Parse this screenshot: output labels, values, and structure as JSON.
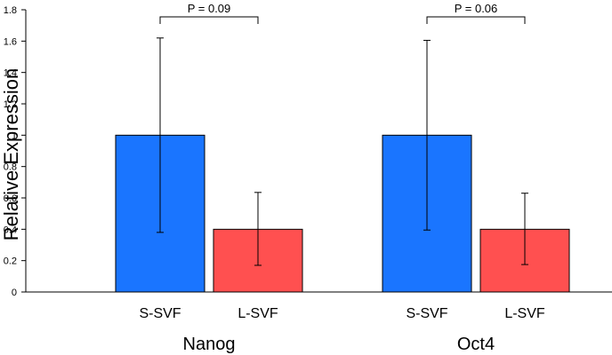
{
  "chart_data": {
    "type": "bar",
    "title": "",
    "ylabel": "Relative Expression",
    "xlabel": "",
    "ylim": [
      0,
      1.8
    ],
    "yticks": [
      0,
      0.2,
      0.4,
      0.6,
      0.8,
      1,
      1.2,
      1.4,
      1.6,
      1.8
    ],
    "ytick_labels": [
      "0",
      "0.2",
      "0.4",
      "0.6",
      "0.8",
      "1",
      "1.2",
      "1.4",
      "1.6",
      "1.8"
    ],
    "grid": false,
    "colors": {
      "S-SVF": "#1a75ff",
      "L-SVF": "#ff5050"
    },
    "groups": [
      {
        "name": "Nanog",
        "pvalue": "P = 0.09",
        "bars": [
          {
            "category": "S-SVF",
            "value": 1.0,
            "err_low": 0.38,
            "err_high": 1.62
          },
          {
            "category": "L-SVF",
            "value": 0.4,
            "err_low": 0.17,
            "err_high": 0.635
          }
        ]
      },
      {
        "name": "Oct4",
        "pvalue": "P = 0.06",
        "bars": [
          {
            "category": "S-SVF",
            "value": 1.0,
            "err_low": 0.395,
            "err_high": 1.605
          },
          {
            "category": "L-SVF",
            "value": 0.4,
            "err_low": 0.175,
            "err_high": 0.63
          }
        ]
      }
    ]
  }
}
